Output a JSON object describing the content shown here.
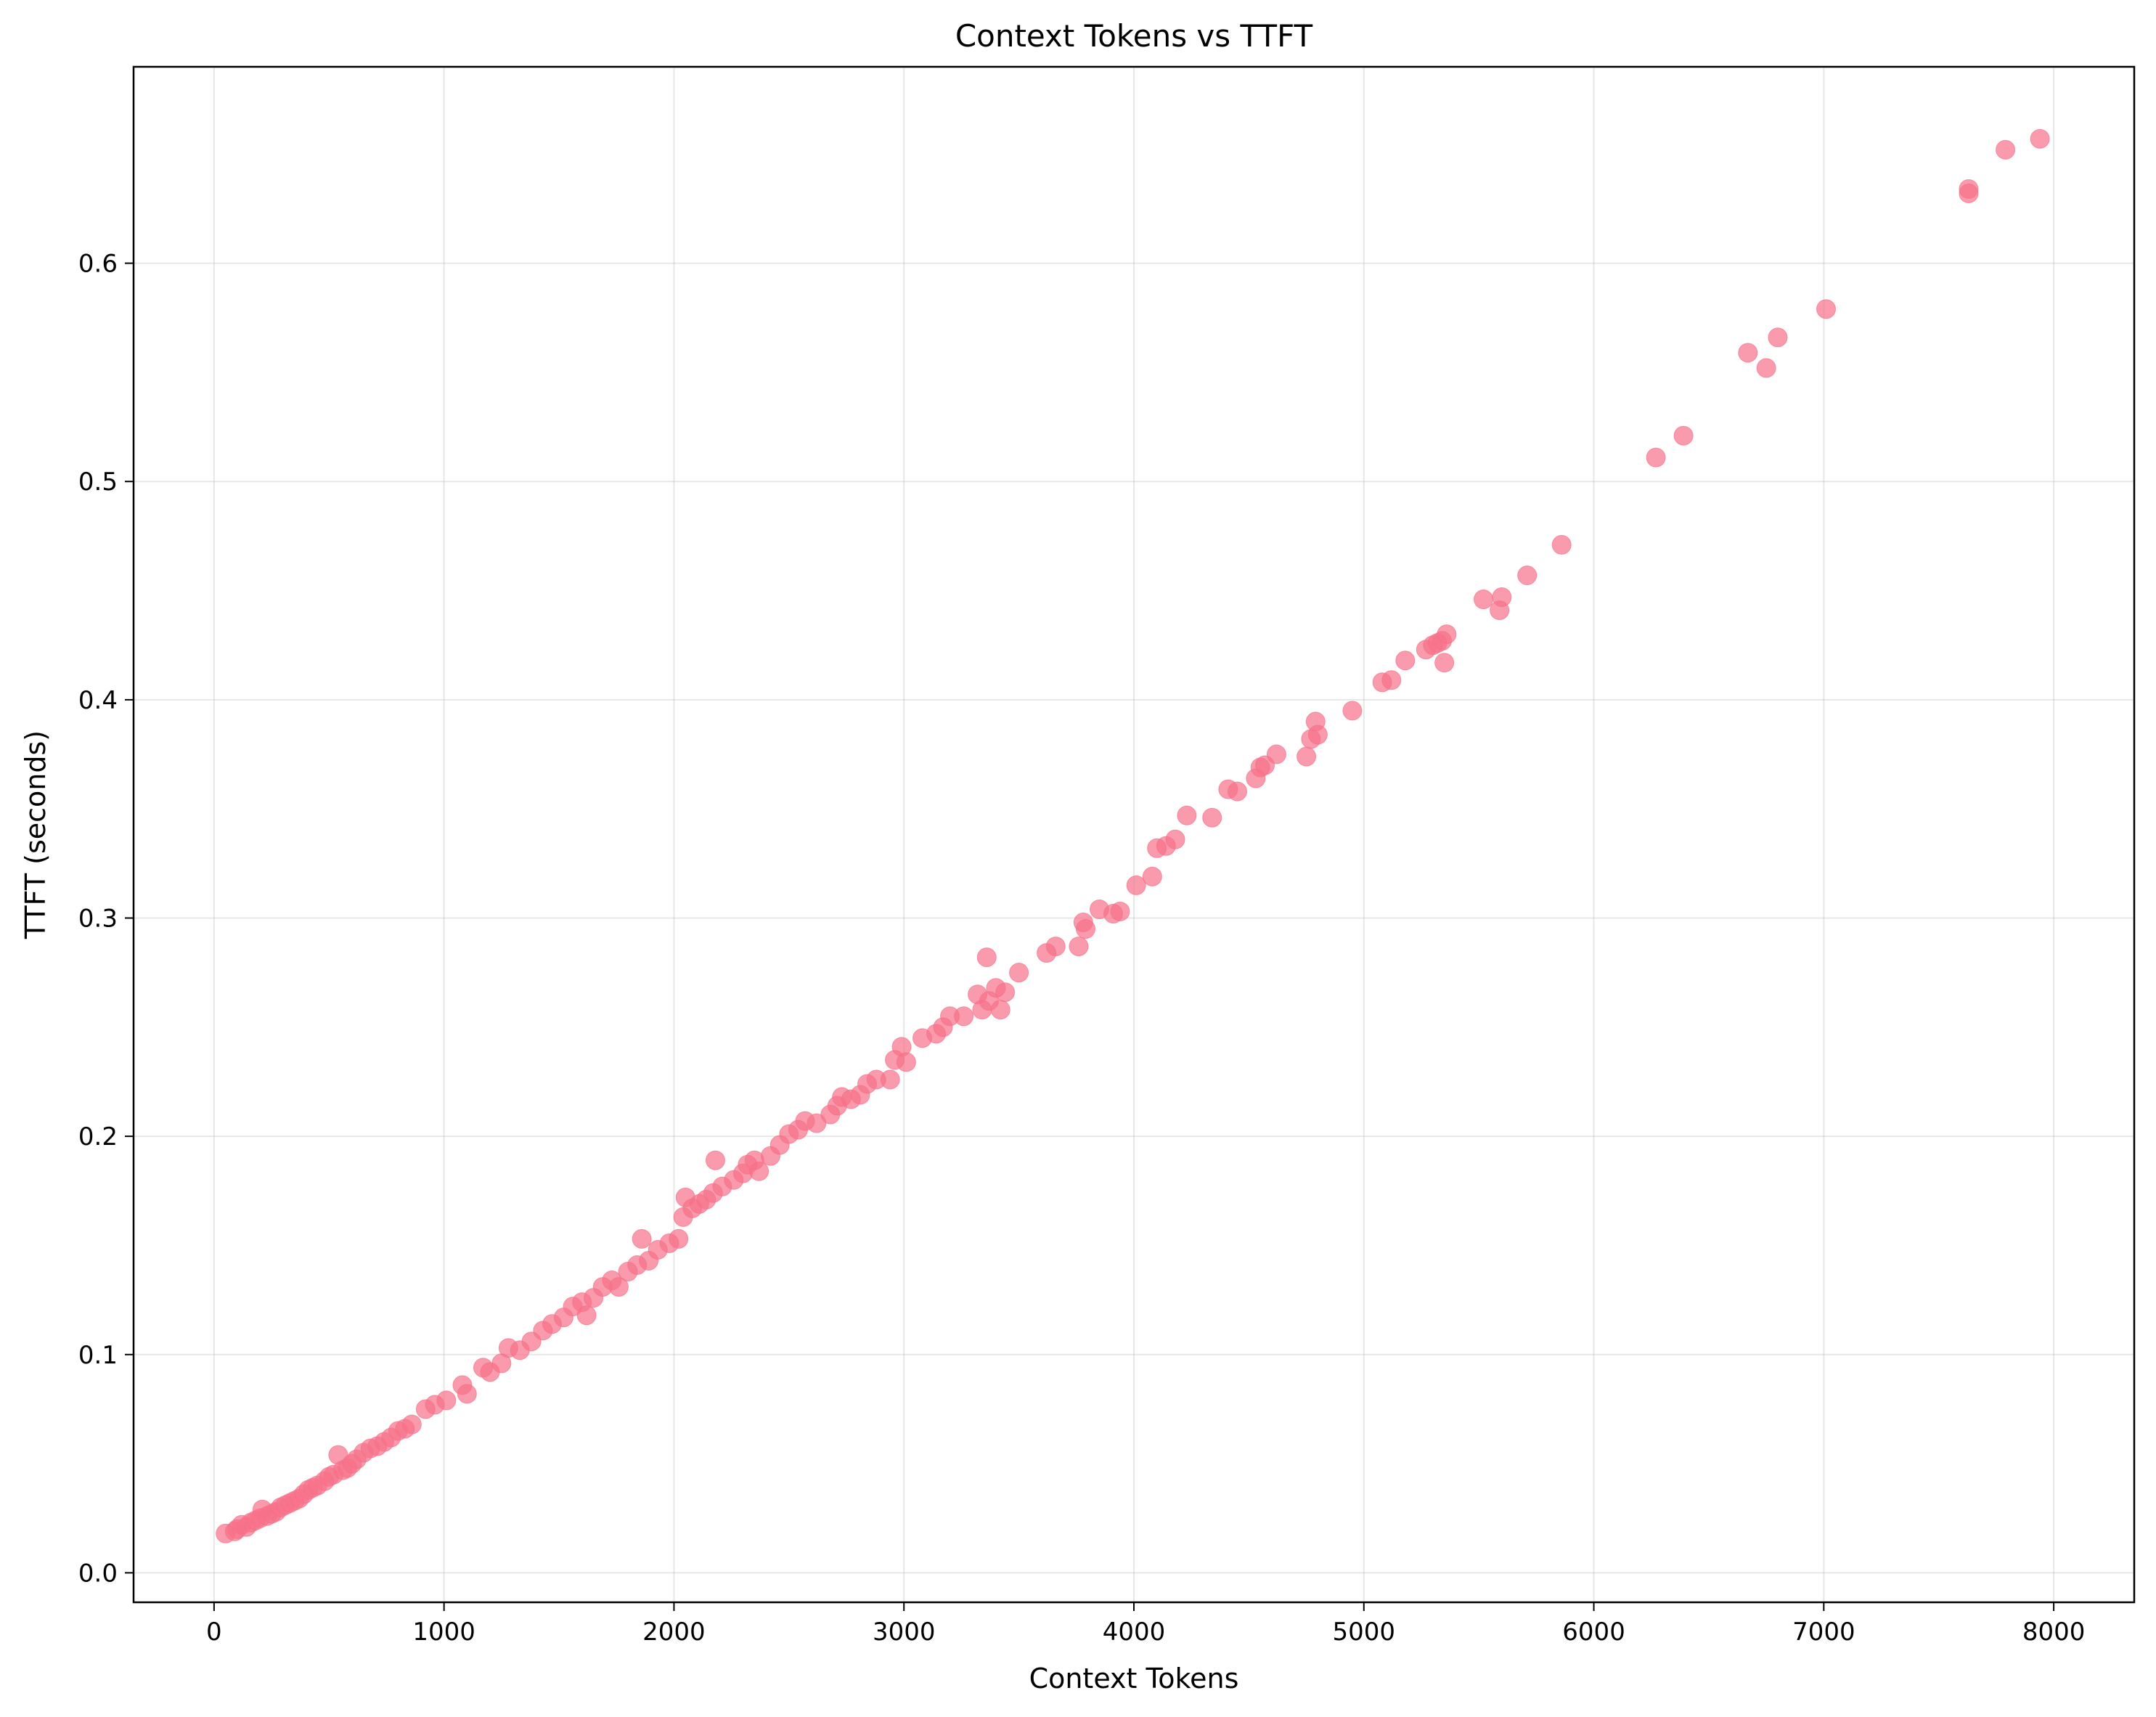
{
  "chart_data": {
    "type": "scatter",
    "title": "Context Tokens vs TTFT",
    "xlabel": "Context Tokens",
    "ylabel": "TTFT (seconds)",
    "xlim": [
      -350,
      8350
    ],
    "ylim": [
      -0.0135,
      0.69
    ],
    "xticks": [
      0,
      1000,
      2000,
      3000,
      4000,
      5000,
      6000,
      7000,
      8000
    ],
    "yticks": [
      0.0,
      0.1,
      0.2,
      0.3,
      0.4,
      0.5,
      0.6
    ],
    "xtick_labels": [
      "0",
      "1000",
      "2000",
      "3000",
      "4000",
      "5000",
      "6000",
      "7000",
      "8000"
    ],
    "ytick_labels": [
      "0.0",
      "0.1",
      "0.2",
      "0.3",
      "0.4",
      "0.5",
      "0.6"
    ],
    "grid": true,
    "marker_color": "#f77189",
    "marker_alpha": 0.7,
    "series": [
      {
        "points": [
          [
            50,
            0.018
          ],
          [
            90,
            0.019
          ],
          [
            100,
            0.02
          ],
          [
            120,
            0.022
          ],
          [
            140,
            0.021
          ],
          [
            160,
            0.023
          ],
          [
            180,
            0.024
          ],
          [
            200,
            0.025
          ],
          [
            210,
            0.029
          ],
          [
            230,
            0.026
          ],
          [
            250,
            0.027
          ],
          [
            270,
            0.028
          ],
          [
            290,
            0.03
          ],
          [
            310,
            0.031
          ],
          [
            330,
            0.032
          ],
          [
            350,
            0.033
          ],
          [
            370,
            0.034
          ],
          [
            390,
            0.036
          ],
          [
            410,
            0.038
          ],
          [
            430,
            0.039
          ],
          [
            450,
            0.04
          ],
          [
            480,
            0.042
          ],
          [
            500,
            0.044
          ],
          [
            520,
            0.045
          ],
          [
            540,
            0.054
          ],
          [
            560,
            0.047
          ],
          [
            580,
            0.048
          ],
          [
            600,
            0.05
          ],
          [
            620,
            0.052
          ],
          [
            650,
            0.055
          ],
          [
            680,
            0.057
          ],
          [
            710,
            0.058
          ],
          [
            740,
            0.06
          ],
          [
            770,
            0.062
          ],
          [
            800,
            0.065
          ],
          [
            830,
            0.066
          ],
          [
            860,
            0.068
          ],
          [
            920,
            0.075
          ],
          [
            960,
            0.077
          ],
          [
            1010,
            0.079
          ],
          [
            1080,
            0.086
          ],
          [
            1100,
            0.082
          ],
          [
            1170,
            0.094
          ],
          [
            1200,
            0.092
          ],
          [
            1250,
            0.096
          ],
          [
            1280,
            0.103
          ],
          [
            1330,
            0.102
          ],
          [
            1380,
            0.106
          ],
          [
            1430,
            0.111
          ],
          [
            1470,
            0.114
          ],
          [
            1520,
            0.117
          ],
          [
            1560,
            0.122
          ],
          [
            1600,
            0.124
          ],
          [
            1620,
            0.118
          ],
          [
            1650,
            0.126
          ],
          [
            1690,
            0.131
          ],
          [
            1730,
            0.134
          ],
          [
            1760,
            0.131
          ],
          [
            1800,
            0.138
          ],
          [
            1840,
            0.141
          ],
          [
            1860,
            0.153
          ],
          [
            1890,
            0.143
          ],
          [
            1930,
            0.148
          ],
          [
            1980,
            0.151
          ],
          [
            2020,
            0.153
          ],
          [
            2040,
            0.163
          ],
          [
            2050,
            0.172
          ],
          [
            2080,
            0.167
          ],
          [
            2110,
            0.169
          ],
          [
            2140,
            0.171
          ],
          [
            2170,
            0.174
          ],
          [
            2180,
            0.189
          ],
          [
            2210,
            0.177
          ],
          [
            2260,
            0.18
          ],
          [
            2300,
            0.183
          ],
          [
            2320,
            0.187
          ],
          [
            2350,
            0.189
          ],
          [
            2370,
            0.184
          ],
          [
            2420,
            0.191
          ],
          [
            2460,
            0.196
          ],
          [
            2500,
            0.201
          ],
          [
            2540,
            0.203
          ],
          [
            2570,
            0.207
          ],
          [
            2620,
            0.206
          ],
          [
            2680,
            0.21
          ],
          [
            2710,
            0.214
          ],
          [
            2730,
            0.218
          ],
          [
            2770,
            0.217
          ],
          [
            2810,
            0.219
          ],
          [
            2840,
            0.224
          ],
          [
            2880,
            0.226
          ],
          [
            2940,
            0.226
          ],
          [
            2960,
            0.235
          ],
          [
            2990,
            0.241
          ],
          [
            3010,
            0.234
          ],
          [
            3080,
            0.245
          ],
          [
            3140,
            0.247
          ],
          [
            3170,
            0.25
          ],
          [
            3200,
            0.255
          ],
          [
            3260,
            0.255
          ],
          [
            3320,
            0.265
          ],
          [
            3340,
            0.258
          ],
          [
            3360,
            0.282
          ],
          [
            3370,
            0.262
          ],
          [
            3400,
            0.268
          ],
          [
            3420,
            0.258
          ],
          [
            3440,
            0.266
          ],
          [
            3500,
            0.275
          ],
          [
            3620,
            0.284
          ],
          [
            3660,
            0.287
          ],
          [
            3760,
            0.287
          ],
          [
            3780,
            0.298
          ],
          [
            3790,
            0.295
          ],
          [
            3850,
            0.304
          ],
          [
            3910,
            0.302
          ],
          [
            3940,
            0.303
          ],
          [
            4010,
            0.315
          ],
          [
            4080,
            0.319
          ],
          [
            4100,
            0.332
          ],
          [
            4140,
            0.333
          ],
          [
            4180,
            0.336
          ],
          [
            4230,
            0.347
          ],
          [
            4340,
            0.346
          ],
          [
            4410,
            0.359
          ],
          [
            4450,
            0.358
          ],
          [
            4530,
            0.364
          ],
          [
            4550,
            0.369
          ],
          [
            4570,
            0.37
          ],
          [
            4620,
            0.375
          ],
          [
            4750,
            0.374
          ],
          [
            4770,
            0.382
          ],
          [
            4790,
            0.39
          ],
          [
            4800,
            0.384
          ],
          [
            4950,
            0.395
          ],
          [
            5080,
            0.408
          ],
          [
            5120,
            0.409
          ],
          [
            5180,
            0.418
          ],
          [
            5270,
            0.423
          ],
          [
            5300,
            0.425
          ],
          [
            5320,
            0.426
          ],
          [
            5340,
            0.427
          ],
          [
            5350,
            0.417
          ],
          [
            5360,
            0.43
          ],
          [
            5520,
            0.446
          ],
          [
            5590,
            0.441
          ],
          [
            5600,
            0.447
          ],
          [
            5710,
            0.457
          ],
          [
            5860,
            0.471
          ],
          [
            6270,
            0.511
          ],
          [
            6390,
            0.521
          ],
          [
            6670,
            0.559
          ],
          [
            6750,
            0.552
          ],
          [
            6800,
            0.566
          ],
          [
            7010,
            0.579
          ],
          [
            7630,
            0.632
          ],
          [
            7630,
            0.634
          ],
          [
            7790,
            0.652
          ],
          [
            7940,
            0.657
          ]
        ]
      }
    ]
  }
}
